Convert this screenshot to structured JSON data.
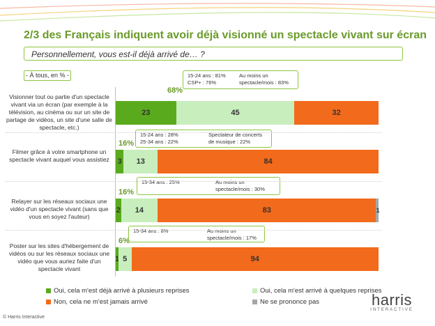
{
  "title": "2/3 des Français indiquent avoir déjà visionné un spectacle vivant sur écran",
  "question": "Personnellement, vous est-il déjà arrivé de… ?",
  "base": "- À tous, en % -",
  "colors": {
    "several_times": "#5aaa1e",
    "a_few_times": "#c8eebe",
    "never": "#f26a1b",
    "no_answer": "#a6a6a6",
    "accent": "#8cc63f"
  },
  "chart_data": {
    "type": "bar",
    "orientation": "horizontal",
    "stacked": true,
    "categories": [
      "Visionner tout ou partie d'un spectacle vivant via un écran (par exemple à la télévision, au cinéma ou sur un site de partage de vidéos, un site d'une salle de spectacle, etc.)",
      "Filmer grâce à votre smartphone un spectacle vivant auquel vous assistiez",
      "Relayer sur les réseaux sociaux une vidéo d'un spectacle vivant (sans que vous en soyez l'auteur)",
      "Poster sur les sites d'hébergement de vidéos ou sur les réseaux sociaux une vidéo que vous auriez faite d'un spectacle vivant"
    ],
    "series": [
      {
        "name": "Oui, cela m'est déjà arrivé à plusieurs reprises",
        "values": [
          23,
          3,
          2,
          1
        ]
      },
      {
        "name": "Oui, cela m'est arrivé à quelques reprises",
        "values": [
          45,
          13,
          14,
          5
        ]
      },
      {
        "name": "Non, cela ne m'est jamais arrivé",
        "values": [
          32,
          84,
          83,
          94
        ]
      },
      {
        "name": "Ne se prononce pas",
        "values": [
          0,
          0,
          1,
          0
        ]
      }
    ],
    "value_labels": [
      [
        "23",
        "45",
        "32",
        ""
      ],
      [
        "3",
        "13",
        "84",
        ""
      ],
      [
        "2",
        "14",
        "83",
        "1"
      ],
      [
        "1",
        "5",
        "94",
        ""
      ]
    ],
    "totals_yes": [
      "68%",
      "16%",
      "16%",
      "6%"
    ],
    "callouts": [
      {
        "left": [
          "15-24 ans : 81%",
          "CSP+ : 76%"
        ],
        "right": [
          "Au moins un",
          "spectacle/mois : 83%"
        ]
      },
      {
        "left": [
          "15-24 ans : 28%",
          "25-34 ans : 22%"
        ],
        "right": [
          "Spectateur de concerts",
          "de musique : 22%"
        ]
      },
      {
        "left": [
          "15-34 ans : 25%"
        ],
        "right": [
          "Au moins un",
          "spectacle/mois : 30%"
        ]
      },
      {
        "left": [
          "15-34 ans : 8%"
        ],
        "right": [
          "Au moins un",
          "spectacle/mois : 17%"
        ]
      }
    ],
    "xlim": [
      0,
      100
    ],
    "legend_position": "bottom"
  },
  "legend": [
    "Oui, cela m'est déjà arrivé à plusieurs reprises",
    "Oui, cela m'est arrivé à quelques reprises",
    "Non, cela ne m'est jamais arrivé",
    "Ne se prononce pas"
  ],
  "copyright": "© Harris Interactive",
  "logo": {
    "word": "harris",
    "sub": "INTERACTIVE"
  }
}
